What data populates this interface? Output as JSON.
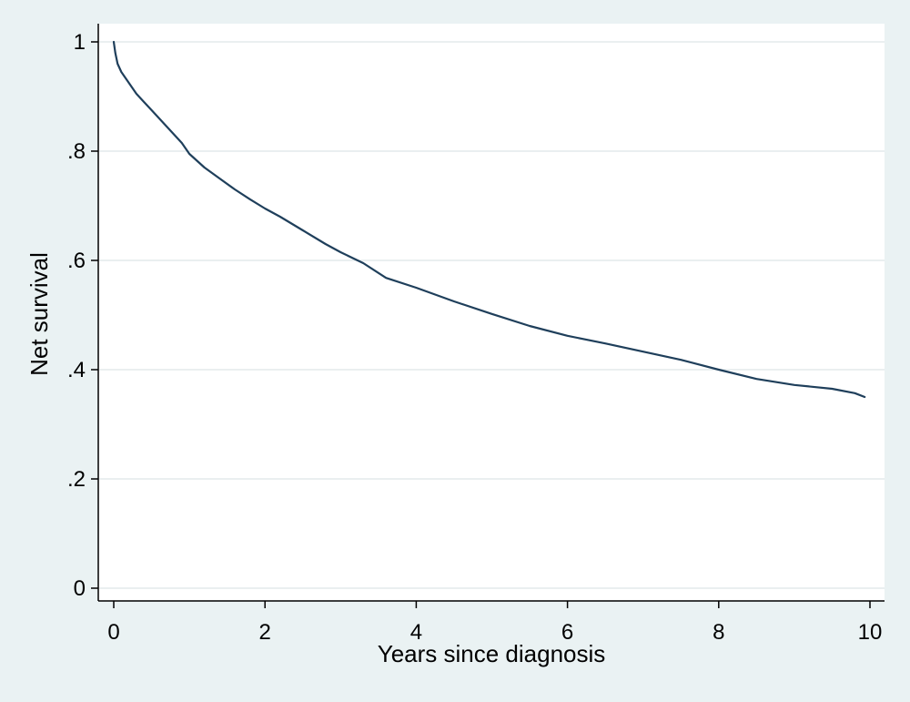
{
  "chart_data": {
    "type": "line",
    "xlabel": "Years since diagnosis",
    "ylabel": "Net survival",
    "xlim": [
      0,
      10
    ],
    "ylim": [
      0,
      1
    ],
    "x_ticks": [
      0,
      2,
      4,
      6,
      8,
      10
    ],
    "y_ticks": [
      0,
      0.2,
      0.4,
      0.6,
      0.8,
      1
    ],
    "x_tick_labels": [
      "0",
      "2",
      "4",
      "6",
      "8",
      "10"
    ],
    "y_tick_labels": [
      "0",
      ".2",
      ".4",
      ".6",
      ".8",
      "1"
    ],
    "grid": "horizontal",
    "series": [
      {
        "color": "#1f3f5b",
        "x": [
          0,
          0.02,
          0.05,
          0.1,
          0.2,
          0.3,
          0.4,
          0.5,
          0.6,
          0.7,
          0.8,
          0.9,
          1.0,
          1.2,
          1.4,
          1.6,
          1.8,
          2.0,
          2.2,
          2.5,
          2.8,
          3.0,
          3.3,
          3.6,
          4.0,
          4.5,
          5.0,
          5.5,
          6.0,
          6.5,
          7.0,
          7.5,
          8.0,
          8.5,
          9.0,
          9.5,
          9.8,
          9.93
        ],
        "y": [
          1.0,
          0.98,
          0.96,
          0.945,
          0.925,
          0.905,
          0.89,
          0.875,
          0.86,
          0.845,
          0.83,
          0.815,
          0.795,
          0.77,
          0.75,
          0.73,
          0.712,
          0.695,
          0.68,
          0.655,
          0.63,
          0.615,
          0.595,
          0.568,
          0.55,
          0.525,
          0.502,
          0.48,
          0.462,
          0.448,
          0.433,
          0.418,
          0.4,
          0.383,
          0.372,
          0.365,
          0.357,
          0.35
        ]
      }
    ]
  }
}
